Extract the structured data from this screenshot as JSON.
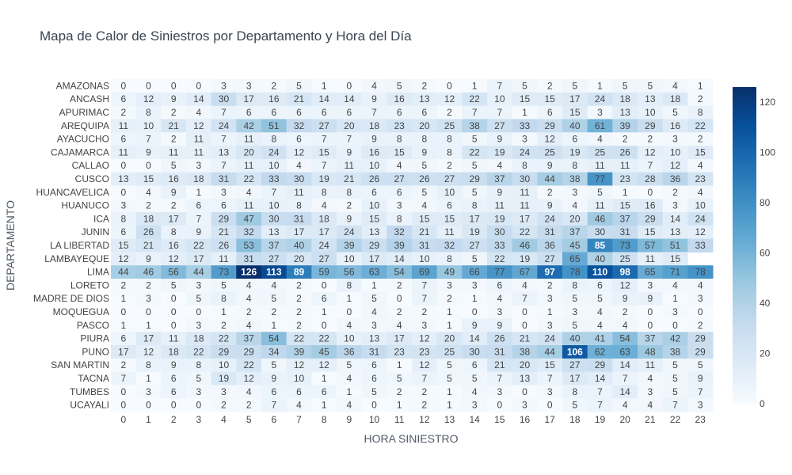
{
  "chart_data": {
    "type": "heatmap",
    "title": "Mapa de Calor de Siniestros por Departamento y Hora del Día",
    "xlabel": "HORA SINIESTRO",
    "ylabel": "DEPARTAMENTO",
    "x": [
      "0",
      "1",
      "2",
      "3",
      "4",
      "5",
      "6",
      "7",
      "8",
      "9",
      "10",
      "11",
      "12",
      "13",
      "14",
      "15",
      "16",
      "17",
      "18",
      "19",
      "20",
      "21",
      "22",
      "23"
    ],
    "y": [
      "AMAZONAS",
      "ANCASH",
      "APURIMAC",
      "AREQUIPA",
      "AYACUCHO",
      "CAJAMARCA",
      "CALLAO",
      "CUSCO",
      "HUANCAVELICA",
      "HUANUCO",
      "ICA",
      "JUNIN",
      "LA LIBERTAD",
      "LAMBAYEQUE",
      "LIMA",
      "LORETO",
      "MADRE DE DIOS",
      "MOQUEGUA",
      "PASCO",
      "PIURA",
      "PUNO",
      "SAN MARTIN",
      "TACNA",
      "TUMBES",
      "UCAYALI"
    ],
    "z": [
      [
        0,
        0,
        0,
        0,
        3,
        3,
        2,
        5,
        1,
        0,
        4,
        5,
        2,
        0,
        1,
        7,
        5,
        2,
        5,
        1,
        5,
        5,
        4,
        1
      ],
      [
        6,
        12,
        9,
        14,
        30,
        17,
        16,
        21,
        14,
        14,
        9,
        16,
        13,
        12,
        22,
        10,
        15,
        15,
        17,
        24,
        18,
        13,
        18,
        2
      ],
      [
        2,
        8,
        2,
        4,
        7,
        6,
        6,
        6,
        6,
        6,
        7,
        6,
        6,
        2,
        7,
        7,
        1,
        6,
        15,
        3,
        13,
        10,
        5,
        8
      ],
      [
        11,
        10,
        21,
        12,
        24,
        42,
        51,
        32,
        27,
        20,
        18,
        23,
        20,
        25,
        38,
        27,
        33,
        29,
        40,
        61,
        39,
        29,
        16,
        22
      ],
      [
        6,
        7,
        2,
        11,
        7,
        11,
        8,
        6,
        7,
        7,
        9,
        8,
        8,
        8,
        5,
        9,
        3,
        12,
        6,
        4,
        2,
        2,
        3,
        2
      ],
      [
        11,
        9,
        11,
        11,
        13,
        20,
        24,
        12,
        15,
        9,
        16,
        15,
        9,
        8,
        22,
        19,
        24,
        25,
        19,
        25,
        26,
        12,
        10,
        15
      ],
      [
        0,
        0,
        5,
        3,
        7,
        11,
        10,
        4,
        7,
        11,
        10,
        4,
        5,
        2,
        5,
        4,
        8,
        9,
        8,
        11,
        11,
        7,
        12,
        4
      ],
      [
        13,
        15,
        16,
        18,
        31,
        22,
        33,
        30,
        19,
        21,
        26,
        27,
        26,
        27,
        29,
        37,
        30,
        44,
        38,
        77,
        23,
        28,
        36,
        23
      ],
      [
        0,
        4,
        9,
        1,
        3,
        4,
        7,
        11,
        8,
        8,
        6,
        6,
        5,
        10,
        5,
        9,
        11,
        2,
        3,
        5,
        1,
        0,
        2,
        4
      ],
      [
        3,
        2,
        2,
        6,
        6,
        11,
        10,
        8,
        4,
        2,
        10,
        3,
        4,
        6,
        8,
        11,
        11,
        9,
        4,
        11,
        15,
        16,
        3,
        10
      ],
      [
        8,
        18,
        17,
        7,
        29,
        47,
        30,
        31,
        18,
        9,
        15,
        8,
        15,
        15,
        17,
        19,
        17,
        24,
        20,
        46,
        37,
        29,
        14,
        24
      ],
      [
        6,
        26,
        8,
        9,
        21,
        32,
        13,
        17,
        17,
        24,
        13,
        32,
        21,
        11,
        19,
        30,
        22,
        31,
        37,
        30,
        31,
        15,
        13,
        12
      ],
      [
        15,
        21,
        16,
        22,
        26,
        53,
        37,
        40,
        24,
        39,
        29,
        39,
        31,
        32,
        27,
        33,
        46,
        36,
        45,
        85,
        73,
        57,
        51,
        33
      ],
      [
        12,
        9,
        12,
        17,
        11,
        31,
        27,
        20,
        27,
        10,
        17,
        14,
        10,
        8,
        5,
        22,
        19,
        27,
        65,
        40,
        25,
        11,
        15,
        null
      ],
      [
        44,
        46,
        56,
        44,
        73,
        126,
        113,
        89,
        59,
        56,
        63,
        54,
        69,
        49,
        66,
        77,
        67,
        97,
        78,
        110,
        98,
        65,
        71,
        78
      ],
      [
        2,
        2,
        5,
        3,
        5,
        4,
        4,
        2,
        0,
        8,
        1,
        2,
        7,
        3,
        3,
        6,
        4,
        2,
        8,
        6,
        12,
        3,
        4,
        4
      ],
      [
        1,
        3,
        0,
        5,
        8,
        4,
        5,
        2,
        6,
        1,
        5,
        0,
        7,
        2,
        1,
        4,
        7,
        3,
        5,
        5,
        9,
        9,
        1,
        3
      ],
      [
        0,
        0,
        0,
        0,
        1,
        2,
        2,
        2,
        1,
        0,
        4,
        2,
        2,
        1,
        0,
        3,
        0,
        1,
        3,
        4,
        2,
        0,
        3,
        0
      ],
      [
        1,
        1,
        0,
        3,
        2,
        4,
        1,
        2,
        0,
        4,
        3,
        4,
        3,
        1,
        9,
        9,
        0,
        3,
        5,
        4,
        4,
        0,
        0,
        2
      ],
      [
        6,
        17,
        11,
        18,
        22,
        37,
        54,
        22,
        22,
        10,
        13,
        17,
        12,
        20,
        14,
        26,
        21,
        24,
        40,
        41,
        54,
        37,
        42,
        29
      ],
      [
        17,
        12,
        18,
        22,
        29,
        29,
        34,
        39,
        45,
        36,
        31,
        23,
        23,
        25,
        30,
        31,
        38,
        44,
        106,
        62,
        63,
        48,
        38,
        29
      ],
      [
        2,
        8,
        9,
        8,
        10,
        22,
        5,
        12,
        12,
        5,
        6,
        1,
        12,
        5,
        6,
        21,
        20,
        15,
        27,
        29,
        14,
        11,
        5,
        5
      ],
      [
        7,
        1,
        6,
        5,
        19,
        12,
        9,
        10,
        1,
        4,
        6,
        5,
        7,
        5,
        5,
        7,
        13,
        7,
        17,
        14,
        7,
        4,
        5,
        9
      ],
      [
        0,
        3,
        6,
        3,
        3,
        4,
        6,
        6,
        6,
        1,
        5,
        2,
        2,
        1,
        4,
        3,
        0,
        3,
        8,
        7,
        14,
        3,
        5,
        7
      ],
      [
        0,
        0,
        0,
        0,
        2,
        2,
        7,
        4,
        1,
        4,
        0,
        1,
        2,
        1,
        3,
        0,
        3,
        0,
        5,
        7,
        4,
        4,
        7,
        3
      ]
    ],
    "zmin": 0,
    "zmax": 126,
    "colorscale": "Blues",
    "colorbar_ticks": [
      0,
      20,
      40,
      60,
      80,
      100,
      120
    ],
    "colors": [
      "#f7fbff",
      "#deebf7",
      "#c6dbef",
      "#9ecae1",
      "#6baed6",
      "#4292c6",
      "#2171b5",
      "#08519c",
      "#08306b"
    ]
  }
}
